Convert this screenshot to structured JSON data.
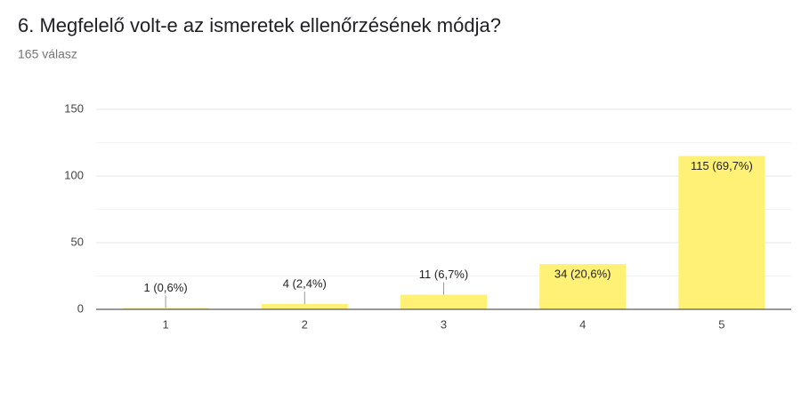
{
  "chart_data": {
    "type": "bar",
    "title": "6. Megfelelő volt-e az ismeretek ellenőrzésének módja?",
    "subtitle": "165 válasz",
    "categories": [
      "1",
      "2",
      "3",
      "4",
      "5"
    ],
    "values": [
      1,
      4,
      11,
      34,
      115
    ],
    "value_labels": [
      "1 (0,6%)",
      "4 (2,4%)",
      "11 (6,7%)",
      "34 (20,6%)",
      "115 (69,7%)"
    ],
    "color": "#fff176",
    "ylim": [
      0,
      150
    ],
    "yticks": [
      0,
      50,
      100,
      150
    ],
    "minor_yticks": [
      25,
      75,
      125
    ],
    "grid": true
  }
}
